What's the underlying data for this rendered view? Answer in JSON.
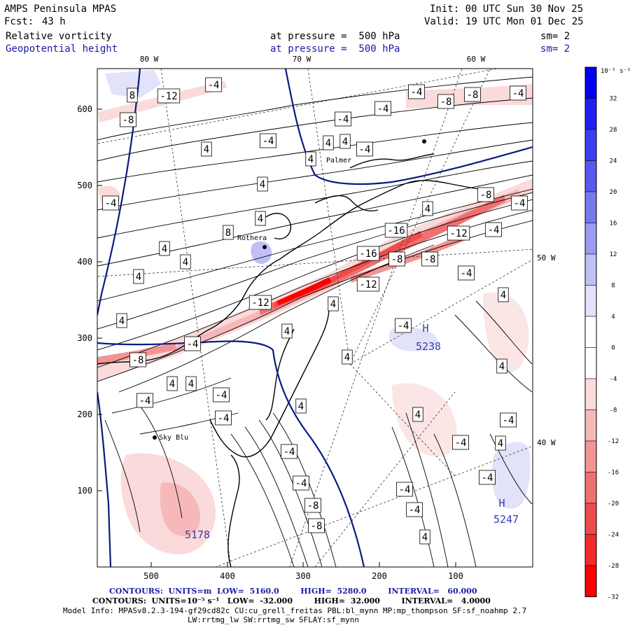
{
  "header": {
    "model": "AMPS Peninsula MPAS",
    "fcst_label": "Fcst:",
    "fcst_value": "43 h",
    "init": "Init: 00 UTC Sun 30 Nov 25",
    "valid": "Valid: 19 UTC Mon 01 Dec 25",
    "field1": "Relative vorticity",
    "field1_level": "at pressure =  500 hPa",
    "field1_sm": "sm= 2",
    "field2": "Geopotential height",
    "field2_level": "at pressure =  500 hPa",
    "field2_sm": "sm= 2"
  },
  "map": {
    "lon_labels": [
      "80 W",
      "70 W",
      "60 W",
      "50 W",
      "40 W"
    ],
    "y_ticks": [
      "600",
      "500",
      "400",
      "300",
      "200",
      "100"
    ],
    "x_ticks": [
      "500",
      "400",
      "300",
      "200",
      "100"
    ],
    "stations": [
      "Palmer",
      "Rothera",
      "Sky Blu"
    ],
    "highs": [
      {
        "label": "H",
        "value": "5238"
      },
      {
        "label": "H",
        "value": "5247"
      }
    ],
    "low_value": "5178",
    "contour_labels": [
      "8",
      "-12",
      "-4",
      "-8",
      "-4",
      "-8",
      "-8",
      "-4",
      "-4",
      "-4",
      "4",
      "-4",
      "4",
      "4",
      "4",
      "-4",
      "4",
      "-4",
      "4",
      "8",
      "4",
      "4",
      "-8",
      "-16",
      "-12",
      "-4",
      "4",
      "-4",
      "-16",
      "-8",
      "-8",
      "-4",
      "4",
      "-12",
      "4",
      "-12",
      "4",
      "4",
      "-4",
      "4",
      "-4",
      "-8",
      "4",
      "4",
      "4",
      "-4",
      "-4",
      "4",
      "-4",
      "4",
      "4",
      "-4",
      "-4",
      "4",
      "-4",
      "-4",
      "-4",
      "-8",
      "-4",
      "-4",
      "4",
      "-8"
    ]
  },
  "colorbar": {
    "unit_label": "10⁻⁵ s⁻¹",
    "labels": [
      "32",
      "28",
      "24",
      "20",
      "16",
      "12",
      "8",
      "4",
      "0",
      "-4",
      "-8",
      "-12",
      "-16",
      "-20",
      "-24",
      "-28",
      "-32"
    ],
    "colors": [
      "#0000ee",
      "#1f1ff2",
      "#3c3cf0",
      "#5858ee",
      "#7878ee",
      "#9c9cf2",
      "#c0c0f6",
      "#e2e2fa",
      "#ffffff",
      "#ffffff",
      "#fadada",
      "#f6b8b8",
      "#f29494",
      "#ee7070",
      "#ee4c4c",
      "#f22a2a",
      "#ff0000"
    ]
  },
  "footer": {
    "line1": "CONTOURS:  UNITS=m  LOW=  5160.0        HIGH=  5280.0        INTERVAL=   60.000",
    "line2": "CONTOURS:  UNITS=10⁻⁵ s⁻¹   LOW=  -32.000        HIGH=  32.000        INTERVAL=   4.0000",
    "line3": "Model Info: MPASv8.2.3-194-gf29cd82c CU:cu_grell_freitas PBL:bl_mynn MP:mp_thompson SF:sf_noahmp 2.7",
    "line4": "LW:rrtmg_lw SW:rrtmg_sw SFLAY:sf_mynn"
  }
}
